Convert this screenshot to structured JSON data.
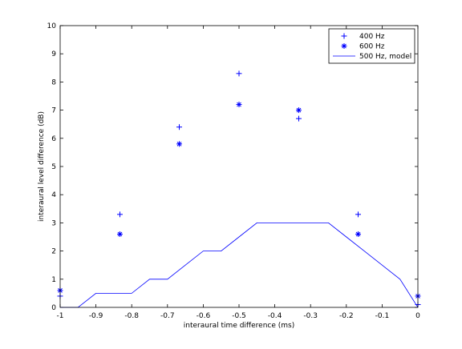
{
  "chart_data": {
    "type": "scatter",
    "xlabel": "interaural time difference (ms)",
    "ylabel": "interaural level difference (dB)",
    "xlim": [
      -1,
      0
    ],
    "ylim": [
      0,
      10
    ],
    "x_ticks": [
      -1,
      -0.9,
      -0.8,
      -0.7,
      -0.6,
      -0.5,
      -0.4,
      -0.3,
      -0.2,
      -0.1,
      0
    ],
    "x_tick_labels": [
      "-1",
      "-0.9",
      "-0.8",
      "-0.7",
      "-0.6",
      "-0.5",
      "-0.4",
      "-0.3",
      "-0.2",
      "-0.1",
      "0"
    ],
    "y_ticks": [
      0,
      1,
      2,
      3,
      4,
      5,
      6,
      7,
      8,
      9,
      10
    ],
    "y_tick_labels": [
      "0",
      "1",
      "2",
      "3",
      "4",
      "5",
      "6",
      "7",
      "8",
      "9",
      "10"
    ],
    "legend_position": "top-right",
    "grid": false,
    "series": [
      {
        "name": "400 Hz",
        "marker": "plus",
        "color": "#0000ff",
        "x": [
          -1,
          -0.833,
          -0.667,
          -0.5,
          -0.333,
          -0.167,
          0
        ],
        "y": [
          0.4,
          3.3,
          6.4,
          8.3,
          6.7,
          3.3,
          0.1
        ]
      },
      {
        "name": "600 Hz",
        "marker": "asterisk",
        "color": "#0000ff",
        "x": [
          -1,
          -0.833,
          -0.667,
          -0.5,
          -0.333,
          -0.167,
          0
        ],
        "y": [
          0.6,
          2.6,
          5.8,
          7.2,
          7.0,
          2.6,
          0.4
        ]
      },
      {
        "name": "500 Hz, model",
        "marker": "line",
        "color": "#0000ff",
        "x": [
          -1,
          -0.95,
          -0.9,
          -0.85,
          -0.8,
          -0.75,
          -0.7,
          -0.65,
          -0.6,
          -0.55,
          -0.5,
          -0.45,
          -0.4,
          -0.35,
          -0.3,
          -0.25,
          -0.2,
          -0.15,
          -0.1,
          -0.05,
          0
        ],
        "y": [
          0,
          0,
          0.5,
          0.5,
          0.5,
          1,
          1,
          1.5,
          2,
          2,
          2.5,
          3,
          3,
          3,
          3,
          3,
          2.5,
          2,
          1.5,
          1,
          0
        ]
      }
    ]
  }
}
